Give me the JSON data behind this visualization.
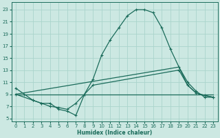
{
  "xlabel": "Humidex (Indice chaleur)",
  "bg_color": "#cce8e2",
  "grid_color": "#aad4cc",
  "line_color": "#1a6b5a",
  "xlim": [
    -0.5,
    23.5
  ],
  "ylim": [
    4.5,
    24.2
  ],
  "xticks": [
    0,
    1,
    2,
    3,
    4,
    5,
    6,
    7,
    8,
    9,
    10,
    11,
    12,
    13,
    14,
    15,
    16,
    17,
    18,
    19,
    20,
    21,
    22,
    23
  ],
  "yticks": [
    5,
    7,
    9,
    11,
    13,
    15,
    17,
    19,
    21,
    23
  ],
  "curve1_x": [
    0,
    1,
    2,
    3,
    4,
    5,
    6,
    7,
    8,
    9,
    10,
    11,
    12,
    13,
    14,
    15,
    16,
    17,
    18,
    19,
    20,
    21,
    22,
    23
  ],
  "curve1_y": [
    10.0,
    9.0,
    8.0,
    7.5,
    7.5,
    6.5,
    6.2,
    5.5,
    9.0,
    11.5,
    15.5,
    18.0,
    20.0,
    22.0,
    23.0,
    23.0,
    22.5,
    20.0,
    16.5,
    13.5,
    11.0,
    9.5,
    8.5,
    8.5
  ],
  "curve2_x": [
    0,
    2,
    3,
    4,
    5,
    6,
    7,
    8,
    9,
    19,
    20,
    21,
    22,
    23
  ],
  "curve2_y": [
    9.0,
    8.0,
    7.5,
    7.0,
    6.8,
    6.5,
    7.5,
    9.0,
    10.5,
    13.0,
    10.5,
    9.2,
    8.8,
    8.5
  ],
  "curve3_x": [
    0,
    23
  ],
  "curve3_y": [
    9.0,
    9.0
  ],
  "curve4_x": [
    0,
    19,
    20,
    21,
    22,
    23
  ],
  "curve4_y": [
    9.0,
    13.5,
    10.5,
    9.2,
    8.8,
    8.5
  ]
}
